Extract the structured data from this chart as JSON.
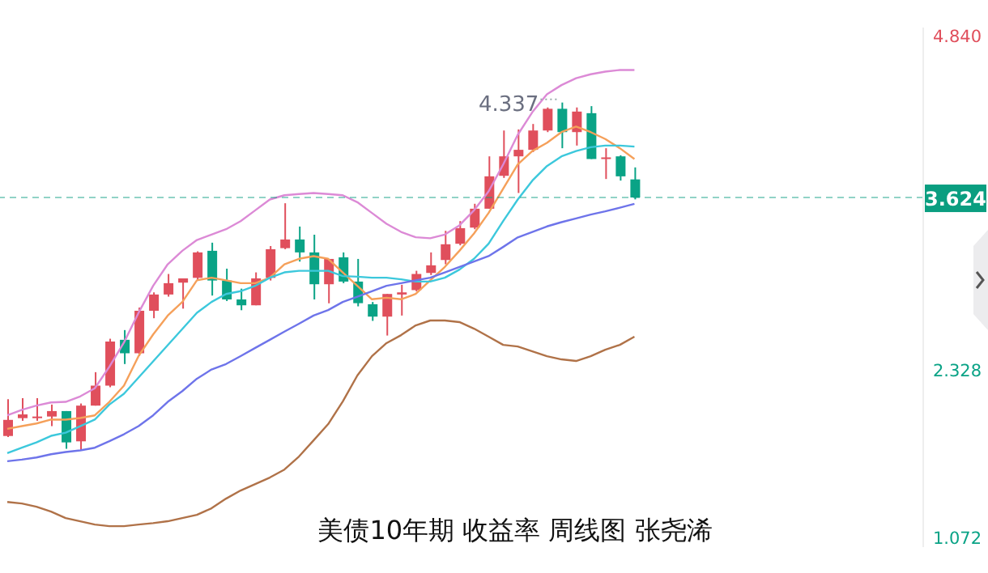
{
  "chart_data": {
    "type": "candlestick",
    "title": "美债10年期 收益率 周线图 张尧浠",
    "categories": [
      null,
      null,
      null,
      null,
      null,
      null,
      null,
      null,
      null,
      null,
      null,
      null,
      null,
      null,
      null,
      null,
      null,
      null,
      null,
      null,
      null,
      null,
      null,
      null,
      null,
      null,
      null,
      null,
      null,
      null,
      null,
      null,
      null,
      null,
      null,
      null,
      null,
      null,
      null,
      null,
      null,
      null,
      null,
      null
    ],
    "ohlc": [
      [
        1.834,
        2.11,
        1.826,
        1.955
      ],
      [
        1.968,
        2.118,
        1.948,
        1.996
      ],
      [
        1.968,
        2.118,
        1.948,
        1.98
      ],
      [
        1.98,
        2.07,
        1.908,
        2.021
      ],
      [
        2.021,
        2.021,
        1.738,
        1.786
      ],
      [
        1.794,
        2.078,
        1.725,
        2.062
      ],
      [
        2.062,
        2.313,
        2.062,
        2.212
      ],
      [
        2.212,
        2.564,
        2.2,
        2.543
      ],
      [
        2.556,
        2.629,
        2.374,
        2.455
      ],
      [
        2.455,
        2.798,
        2.434,
        2.774
      ],
      [
        2.774,
        2.912,
        2.718,
        2.896
      ],
      [
        2.896,
        3.05,
        2.88,
        2.981
      ],
      [
        2.985,
        3.017,
        2.79,
        3.017
      ],
      [
        3.021,
        3.22,
        3.001,
        3.212
      ],
      [
        3.224,
        3.285,
        2.888,
        3.001
      ],
      [
        3.001,
        3.09,
        2.847,
        2.859
      ],
      [
        2.859,
        2.94,
        2.778,
        2.815
      ],
      [
        2.815,
        3.062,
        2.815,
        3.017
      ],
      [
        3.021,
        3.26,
        3.001,
        3.236
      ],
      [
        3.244,
        3.581,
        3.236,
        3.309
      ],
      [
        3.309,
        3.406,
        3.143,
        3.212
      ],
      [
        3.212,
        3.345,
        2.859,
        2.973
      ],
      [
        2.973,
        3.163,
        2.83,
        3.163
      ],
      [
        3.175,
        3.212,
        2.981,
        2.993
      ],
      [
        2.993,
        3.163,
        2.807,
        2.831
      ],
      [
        2.823,
        2.84,
        2.698,
        2.73
      ],
      [
        2.73,
        2.9,
        2.588,
        2.9
      ],
      [
        2.896,
        2.969,
        2.738,
        2.912
      ],
      [
        2.929,
        3.074,
        2.92,
        3.05
      ],
      [
        3.058,
        3.212,
        3.042,
        3.115
      ],
      [
        3.155,
        3.374,
        3.123,
        3.273
      ],
      [
        3.277,
        3.447,
        3.265,
        3.394
      ],
      [
        3.398,
        3.577,
        3.386,
        3.54
      ],
      [
        3.54,
        3.933,
        3.54,
        3.783
      ],
      [
        3.787,
        4.127,
        3.771,
        3.933
      ],
      [
        3.933,
        4.135,
        3.658,
        3.982
      ],
      [
        3.982,
        4.176,
        3.965,
        4.127
      ],
      [
        4.127,
        4.3,
        4.115,
        4.29
      ],
      [
        4.29,
        4.337,
        3.994,
        4.115
      ],
      [
        4.115,
        4.3,
        4.014,
        4.269
      ],
      [
        4.257,
        4.31,
        3.913,
        3.913
      ],
      [
        3.913,
        3.994,
        3.763,
        3.925
      ],
      [
        3.933,
        3.941,
        3.751,
        3.783
      ],
      [
        3.76,
        3.85,
        3.61,
        3.624
      ]
    ],
    "series": [
      {
        "type": "line",
        "color": "#f5a05a",
        "values": [
          1.888,
          1.908,
          1.928,
          1.957,
          1.957,
          1.969,
          1.989,
          2.09,
          2.212,
          2.434,
          2.596,
          2.738,
          2.84,
          3.002,
          3.022,
          3.002,
          2.981,
          2.981,
          3.022,
          3.123,
          3.164,
          3.184,
          3.164,
          3.062,
          2.961,
          2.86,
          2.872,
          2.86,
          2.9,
          3.002,
          3.103,
          3.224,
          3.354,
          3.508,
          3.69,
          3.872,
          3.973,
          4.034,
          4.115,
          4.156,
          4.115,
          4.063,
          3.994,
          3.913
        ]
      },
      {
        "type": "line",
        "color": "#3cc8dc",
        "values": [
          1.705,
          1.746,
          1.786,
          1.835,
          1.859,
          1.908,
          1.957,
          2.07,
          2.151,
          2.273,
          2.394,
          2.516,
          2.637,
          2.759,
          2.84,
          2.9,
          2.921,
          2.961,
          3.022,
          3.062,
          3.074,
          3.074,
          3.074,
          3.034,
          3.03,
          3.022,
          3.022,
          3.01,
          2.993,
          2.993,
          3.022,
          3.083,
          3.164,
          3.277,
          3.447,
          3.609,
          3.751,
          3.86,
          3.933,
          3.973,
          4.002,
          4.014,
          4.014,
          4.006
        ]
      },
      {
        "type": "line",
        "color": "#6e74ea",
        "values": [
          1.645,
          1.657,
          1.673,
          1.697,
          1.714,
          1.726,
          1.746,
          1.795,
          1.847,
          1.908,
          1.989,
          2.09,
          2.171,
          2.264,
          2.333,
          2.374,
          2.434,
          2.495,
          2.556,
          2.617,
          2.677,
          2.738,
          2.779,
          2.84,
          2.88,
          2.921,
          2.961,
          2.981,
          3.002,
          3.022,
          3.062,
          3.103,
          3.143,
          3.184,
          3.253,
          3.325,
          3.366,
          3.407,
          3.439,
          3.467,
          3.496,
          3.52,
          3.548,
          3.577
        ]
      },
      {
        "type": "line",
        "color": "#dc8ad6",
        "values": [
          1.989,
          2.03,
          2.062,
          2.086,
          2.09,
          2.131,
          2.192,
          2.354,
          2.536,
          2.759,
          2.961,
          3.123,
          3.224,
          3.305,
          3.346,
          3.386,
          3.447,
          3.528,
          3.609,
          3.641,
          3.65,
          3.658,
          3.65,
          3.641,
          3.589,
          3.508,
          3.427,
          3.366,
          3.326,
          3.318,
          3.346,
          3.415,
          3.528,
          3.67,
          3.872,
          4.095,
          4.265,
          4.399,
          4.468,
          4.52,
          4.549,
          4.569,
          4.581,
          4.581
        ]
      },
      {
        "type": "line",
        "color": "#b07248",
        "values": [
          1.339,
          1.327,
          1.303,
          1.266,
          1.218,
          1.194,
          1.169,
          1.157,
          1.157,
          1.169,
          1.18,
          1.194,
          1.218,
          1.242,
          1.291,
          1.364,
          1.425,
          1.473,
          1.522,
          1.582,
          1.68,
          1.801,
          1.923,
          2.093,
          2.288,
          2.433,
          2.531,
          2.591,
          2.664,
          2.701,
          2.701,
          2.689,
          2.64,
          2.579,
          2.518,
          2.506,
          2.47,
          2.433,
          2.409,
          2.397,
          2.433,
          2.482,
          2.518,
          2.579
        ]
      }
    ],
    "ylim": [
      1.0,
      4.9
    ],
    "yticks": [
      {
        "value": 4.84,
        "label": "4.840"
      },
      {
        "value": 2.328,
        "label": "2.328"
      },
      {
        "value": 1.072,
        "label": "1.072"
      }
    ],
    "ref_lines": [
      {
        "axis": "y",
        "value": 3.624,
        "label": "3.624",
        "color": "#0a9e80",
        "line_style": "dashed"
      }
    ],
    "annotations": [
      "4.337"
    ],
    "tick_labels": "y"
  }
}
